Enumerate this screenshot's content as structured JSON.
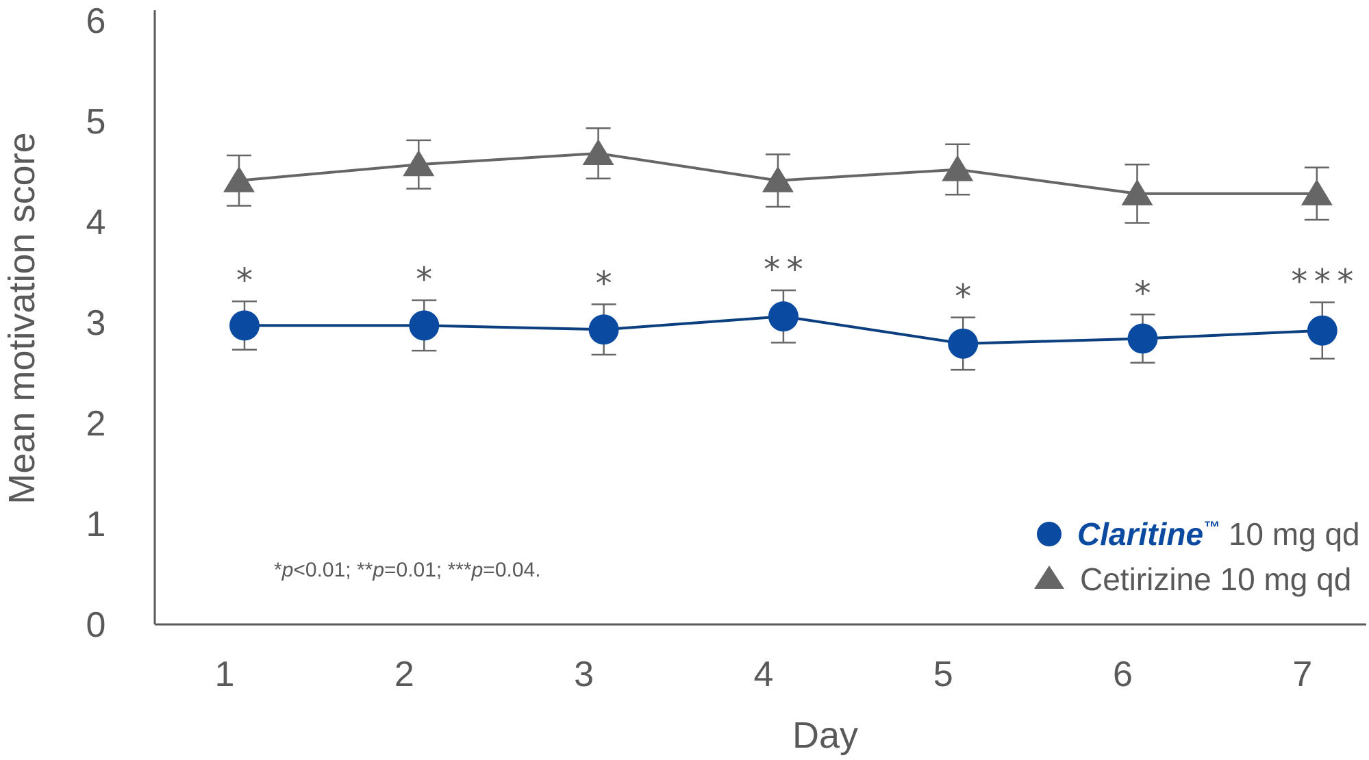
{
  "chart_data": {
    "type": "line",
    "title": "",
    "xlabel": "Day",
    "ylabel": "Mean motivation score",
    "categories": [
      "1",
      "2",
      "3",
      "4",
      "5",
      "6",
      "7"
    ],
    "ylim": [
      0,
      6
    ],
    "yticks": [
      "0",
      "1",
      "2",
      "3",
      "4",
      "5",
      "6"
    ],
    "grid": false,
    "legend": "bottom-right",
    "series": [
      {
        "name_brand": "Claritine",
        "name_tm": "™",
        "name_rest": " 10 mg qd",
        "marker": "circle",
        "color": "#0a4aa0",
        "line_color": "#0b3f7f",
        "values": [
          2.97,
          2.97,
          2.93,
          3.06,
          2.79,
          2.84,
          2.92
        ],
        "error": [
          0.24,
          0.25,
          0.25,
          0.26,
          0.26,
          0.24,
          0.28
        ],
        "significance": [
          "*",
          "*",
          "*",
          "**",
          "*",
          "*",
          "***"
        ]
      },
      {
        "name": "Cetirizine 10 mg qd",
        "marker": "triangle",
        "color": "#666666",
        "line_color": "#666666",
        "values": [
          4.41,
          4.57,
          4.68,
          4.41,
          4.52,
          4.28,
          4.28
        ],
        "error": [
          0.25,
          0.24,
          0.25,
          0.26,
          0.25,
          0.29,
          0.26
        ]
      }
    ],
    "footnote": [
      {
        "text": "*",
        "italic": false
      },
      {
        "text": "p",
        "italic": true
      },
      {
        "text": "<0.01; **",
        "italic": false
      },
      {
        "text": "p",
        "italic": true
      },
      {
        "text": "=0.01; ***",
        "italic": false
      },
      {
        "text": "p",
        "italic": true
      },
      {
        "text": "=0.04.",
        "italic": false
      }
    ]
  }
}
